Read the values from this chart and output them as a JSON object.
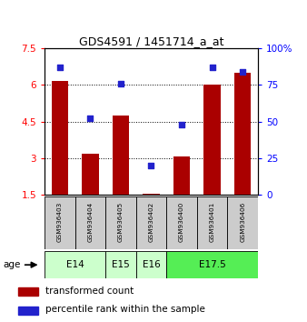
{
  "title": "GDS4591 / 1451714_a_at",
  "samples": [
    "GSM936403",
    "GSM936404",
    "GSM936405",
    "GSM936402",
    "GSM936400",
    "GSM936401",
    "GSM936406"
  ],
  "transformed_counts": [
    6.15,
    3.2,
    4.75,
    1.55,
    3.07,
    6.0,
    6.5
  ],
  "percentile_ranks": [
    87,
    52,
    76,
    20,
    48,
    87,
    84
  ],
  "ylim_left": [
    1.5,
    7.5
  ],
  "ylim_right": [
    0,
    100
  ],
  "yticks_left": [
    1.5,
    3.0,
    4.5,
    6.0,
    7.5
  ],
  "yticks_right": [
    0,
    25,
    50,
    75,
    100
  ],
  "ytick_labels_left": [
    "1.5",
    "3",
    "4.5",
    "6",
    "7.5"
  ],
  "ytick_labels_right": [
    "0",
    "25",
    "50",
    "75",
    "100%"
  ],
  "grid_lines": [
    3.0,
    4.5,
    6.0
  ],
  "bar_color": "#aa0000",
  "dot_color": "#2222cc",
  "bar_width": 0.55,
  "legend_bar_label": "transformed count",
  "legend_dot_label": "percentile rank within the sample",
  "sample_box_color": "#cccccc",
  "age_defs": [
    {
      "label": "E14",
      "start": 0,
      "end": 1,
      "color": "#ccffcc"
    },
    {
      "label": "E15",
      "start": 2,
      "end": 2,
      "color": "#ccffcc"
    },
    {
      "label": "E16",
      "start": 3,
      "end": 3,
      "color": "#ccffcc"
    },
    {
      "label": "E17.5",
      "start": 4,
      "end": 6,
      "color": "#55ee55"
    }
  ]
}
